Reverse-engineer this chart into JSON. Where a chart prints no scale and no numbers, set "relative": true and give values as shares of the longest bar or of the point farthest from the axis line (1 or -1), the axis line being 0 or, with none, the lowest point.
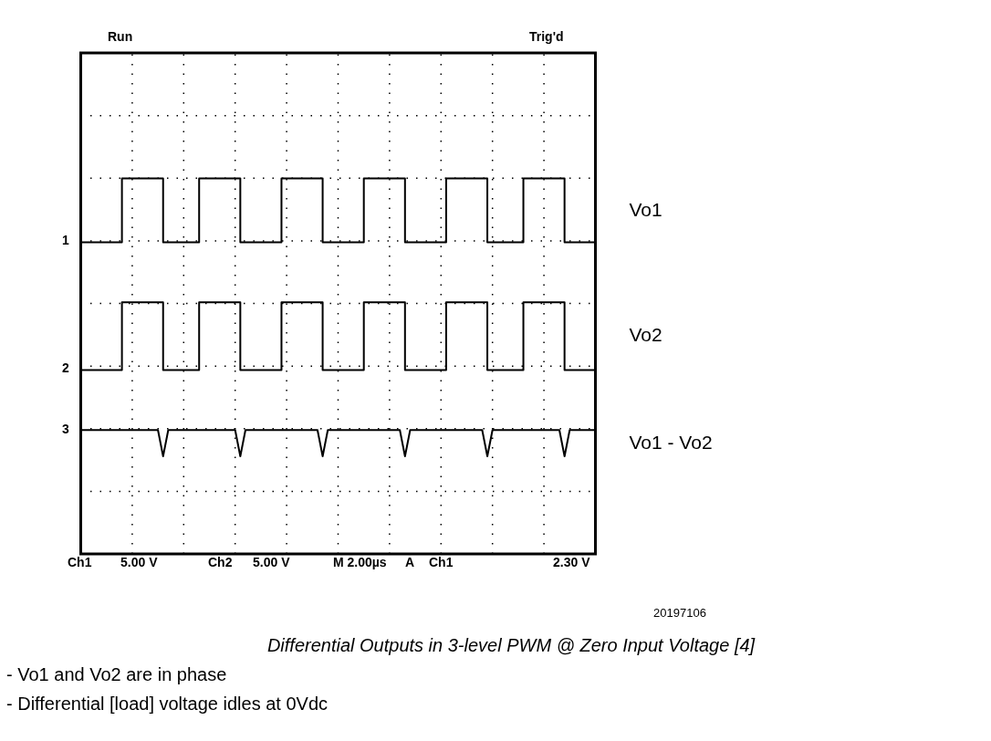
{
  "chart_data": {
    "type": "step",
    "relative": true,
    "grid": true,
    "categories": [
      null,
      null,
      null,
      null,
      null,
      null,
      null,
      null,
      null,
      null,
      null,
      null,
      null,
      null,
      null,
      null,
      null,
      null,
      null,
      null,
      null,
      null,
      null,
      null,
      null,
      null,
      null,
      null,
      null,
      null,
      null,
      null,
      null,
      null,
      null,
      null,
      null,
      null,
      null,
      null,
      null,
      null,
      null,
      null,
      null,
      null,
      null,
      null,
      null,
      null,
      null,
      null,
      null,
      null,
      null,
      null,
      null,
      null,
      null,
      null,
      null,
      null,
      null,
      null,
      null,
      null,
      null,
      null,
      null,
      null,
      null,
      null,
      null,
      null,
      null,
      null,
      null,
      null,
      null,
      null,
      null,
      null,
      null,
      null,
      null,
      null,
      null,
      null,
      null,
      null,
      null,
      null,
      null,
      null,
      null,
      null,
      null,
      null,
      null,
      null,
      null
    ],
    "series": [
      {
        "name": "Vo1",
        "color": "#000000",
        "values": [
          0.83,
          0.83,
          0.83,
          0.83,
          0.83,
          0.83,
          0.83,
          0.83,
          1,
          1,
          1,
          1,
          1,
          1,
          1,
          1,
          0.83,
          0.83,
          0.83,
          0.83,
          0.83,
          0.83,
          0.83,
          1,
          1,
          1,
          1,
          1,
          1,
          1,
          1,
          0.83,
          0.83,
          0.83,
          0.83,
          0.83,
          0.83,
          0.83,
          0.83,
          1,
          1,
          1,
          1,
          1,
          1,
          1,
          1,
          0.83,
          0.83,
          0.83,
          0.83,
          0.83,
          0.83,
          0.83,
          0.83,
          1,
          1,
          1,
          1,
          1,
          1,
          1,
          1,
          0.83,
          0.83,
          0.83,
          0.83,
          0.83,
          0.83,
          0.83,
          0.83,
          1,
          1,
          1,
          1,
          1,
          1,
          1,
          1,
          0.83,
          0.83,
          0.83,
          0.83,
          0.83,
          0.83,
          0.83,
          1,
          1,
          1,
          1,
          1,
          1,
          1,
          1,
          0.83,
          0.83,
          0.83,
          0.83,
          0.83,
          0.83,
          0.83
        ]
      },
      {
        "name": "Vo2",
        "color": "#000000",
        "values": [
          0.49,
          0.49,
          0.49,
          0.49,
          0.49,
          0.49,
          0.49,
          0.49,
          0.67,
          0.67,
          0.67,
          0.67,
          0.67,
          0.67,
          0.67,
          0.67,
          0.49,
          0.49,
          0.49,
          0.49,
          0.49,
          0.49,
          0.49,
          0.67,
          0.67,
          0.67,
          0.67,
          0.67,
          0.67,
          0.67,
          0.67,
          0.49,
          0.49,
          0.49,
          0.49,
          0.49,
          0.49,
          0.49,
          0.49,
          0.67,
          0.67,
          0.67,
          0.67,
          0.67,
          0.67,
          0.67,
          0.67,
          0.49,
          0.49,
          0.49,
          0.49,
          0.49,
          0.49,
          0.49,
          0.49,
          0.67,
          0.67,
          0.67,
          0.67,
          0.67,
          0.67,
          0.67,
          0.67,
          0.49,
          0.49,
          0.49,
          0.49,
          0.49,
          0.49,
          0.49,
          0.49,
          0.67,
          0.67,
          0.67,
          0.67,
          0.67,
          0.67,
          0.67,
          0.67,
          0.49,
          0.49,
          0.49,
          0.49,
          0.49,
          0.49,
          0.49,
          0.67,
          0.67,
          0.67,
          0.67,
          0.67,
          0.67,
          0.67,
          0.67,
          0.49,
          0.49,
          0.49,
          0.49,
          0.49,
          0.49,
          0.49
        ]
      },
      {
        "name": "Vo1 - Vo2",
        "type": "line",
        "color": "#000000",
        "values": [
          0.33,
          0.33,
          0.33,
          0.33,
          0.33,
          0.33,
          0.33,
          0.33,
          0.33,
          0.33,
          0.33,
          0.33,
          0.33,
          0.33,
          0.33,
          0.33,
          0.26,
          0.33,
          0.33,
          0.33,
          0.33,
          0.33,
          0.33,
          0.33,
          0.33,
          0.33,
          0.33,
          0.33,
          0.33,
          0.33,
          0.33,
          0.26,
          0.33,
          0.33,
          0.33,
          0.33,
          0.33,
          0.33,
          0.33,
          0.33,
          0.33,
          0.33,
          0.33,
          0.33,
          0.33,
          0.33,
          0.33,
          0.26,
          0.33,
          0.33,
          0.33,
          0.33,
          0.33,
          0.33,
          0.33,
          0.33,
          0.33,
          0.33,
          0.33,
          0.33,
          0.33,
          0.33,
          0.33,
          0.26,
          0.33,
          0.33,
          0.33,
          0.33,
          0.33,
          0.33,
          0.33,
          0.33,
          0.33,
          0.33,
          0.33,
          0.33,
          0.33,
          0.33,
          0.33,
          0.26,
          0.33,
          0.33,
          0.33,
          0.33,
          0.33,
          0.33,
          0.33,
          0.33,
          0.33,
          0.33,
          0.33,
          0.33,
          0.33,
          0.33,
          0.26,
          0.33,
          0.33,
          0.33,
          0.33,
          0.33,
          0.33
        ]
      }
    ],
    "annotations": [
      "Run",
      "Trig'd",
      "Ch1",
      "5.00 V",
      "Ch2",
      "5.00 V",
      "M 2.00µs",
      "A",
      "Ch1",
      "2.30 V",
      "20197106",
      "Differential Outputs in 3-level PWM @ Zero Input Voltage [4]",
      "- Vo1 and Vo2 are in phase",
      "- Differential [load] voltage idles at 0Vdc",
      "1",
      "2",
      "3"
    ]
  }
}
